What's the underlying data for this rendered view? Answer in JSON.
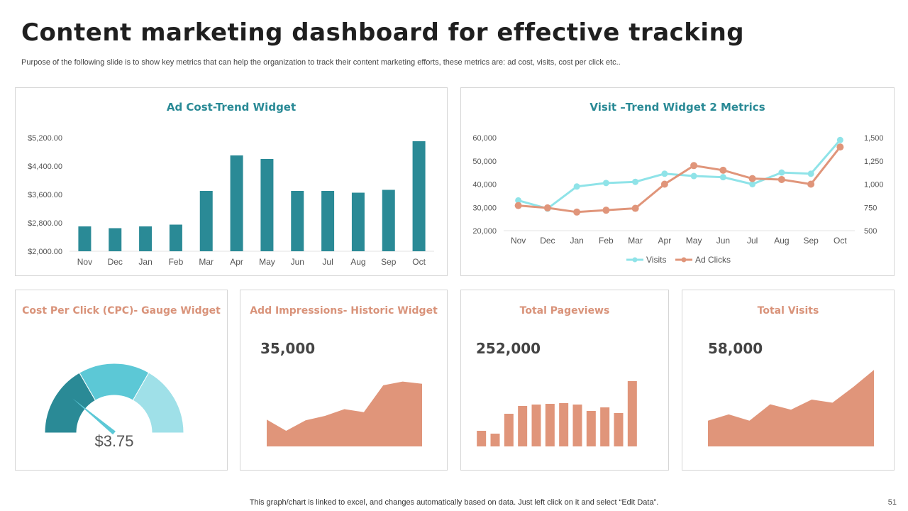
{
  "header": {
    "title": "Content marketing dashboard for effective tracking",
    "subtitle": "Purpose of the following slide is to show key metrics that can help the organization to track their content marketing efforts, these metrics are: ad cost, visits, cost per click etc.."
  },
  "footer": {
    "note": "This graph/chart is linked to excel,  and changes automatically based on data. Just left click on it and select “Edit Data”.",
    "page_number": "51"
  },
  "colors": {
    "teal_dark": "#2a8a96",
    "teal_mid": "#5cc8d6",
    "teal_light": "#9fe0e8",
    "visits_line": "#8fe3e8",
    "salmon": "#e0957a",
    "salmon_text": "#d9937a"
  },
  "widgets": {
    "cpc": {
      "title": "Cost Per Click (CPC)- Gauge Widget",
      "value_label": "$3.75"
    },
    "impressions": {
      "title": "Add Impressions- Historic Widget",
      "value": "35,000"
    },
    "pageviews": {
      "title": "Total Pageviews",
      "value": "252,000"
    },
    "visits": {
      "title": "Total Visits",
      "value": "58,000"
    }
  },
  "chart_data": [
    {
      "id": "ad-cost",
      "type": "bar",
      "title": "Ad Cost-Trend Widget",
      "categories": [
        "Nov",
        "Dec",
        "Jan",
        "Feb",
        "Mar",
        "Apr",
        "May",
        "Jun",
        "Jul",
        "Aug",
        "Sep",
        "Oct"
      ],
      "values": [
        2700,
        2650,
        2700,
        2750,
        3700,
        4700,
        4600,
        3700,
        3700,
        3650,
        3730,
        5100
      ],
      "ylim": [
        2000,
        5200
      ],
      "yticks": [
        "$5,200.00",
        "$4,400.00",
        "$3,600.00",
        "$2,800.00",
        "$2,000.00"
      ],
      "ytick_values": [
        5200,
        4400,
        3600,
        2800,
        2000
      ],
      "xlabel": "",
      "ylabel": ""
    },
    {
      "id": "visit-trend",
      "type": "line",
      "title": "Visit –Trend Widget 2 Metrics",
      "categories": [
        "Nov",
        "Dec",
        "Jan",
        "Feb",
        "Mar",
        "Apr",
        "May",
        "Jun",
        "Jul",
        "Aug",
        "Sep",
        "Oct"
      ],
      "series": [
        {
          "name": "Visits",
          "axis": "left",
          "values": [
            33000,
            29500,
            39000,
            40500,
            41000,
            44500,
            43500,
            43000,
            40000,
            45000,
            44500,
            59000
          ]
        },
        {
          "name": "Ad Clicks",
          "axis": "right",
          "values": [
            770,
            745,
            700,
            720,
            740,
            1000,
            1200,
            1150,
            1060,
            1050,
            1000,
            1400
          ]
        }
      ],
      "ylim_left": [
        20000,
        60000
      ],
      "yticks_left": [
        "60,000",
        "50,000",
        "40,000",
        "30,000",
        "20,000"
      ],
      "ytick_values_left": [
        60000,
        50000,
        40000,
        30000,
        20000
      ],
      "ylim_right": [
        500,
        1500
      ],
      "yticks_right": [
        "1,500",
        "1,250",
        "1,000",
        "750",
        "500"
      ],
      "ytick_values_right": [
        1500,
        1250,
        1000,
        750,
        500
      ],
      "legend": "bottom"
    },
    {
      "id": "cpc-gauge",
      "type": "gauge",
      "segments": [
        33.3,
        33.3,
        33.4
      ],
      "needle_percent": 22
    },
    {
      "id": "impressions-area",
      "type": "area",
      "values": [
        36,
        21,
        35,
        41,
        50,
        46,
        82,
        87,
        84
      ]
    },
    {
      "id": "pageviews-bars",
      "type": "bar",
      "values": [
        22,
        18,
        46,
        57,
        59,
        60,
        61,
        59,
        50,
        55,
        47,
        92
      ]
    },
    {
      "id": "visits-area",
      "type": "area",
      "values": [
        33,
        41,
        33,
        54,
        47,
        60,
        56,
        76,
        98
      ]
    }
  ]
}
